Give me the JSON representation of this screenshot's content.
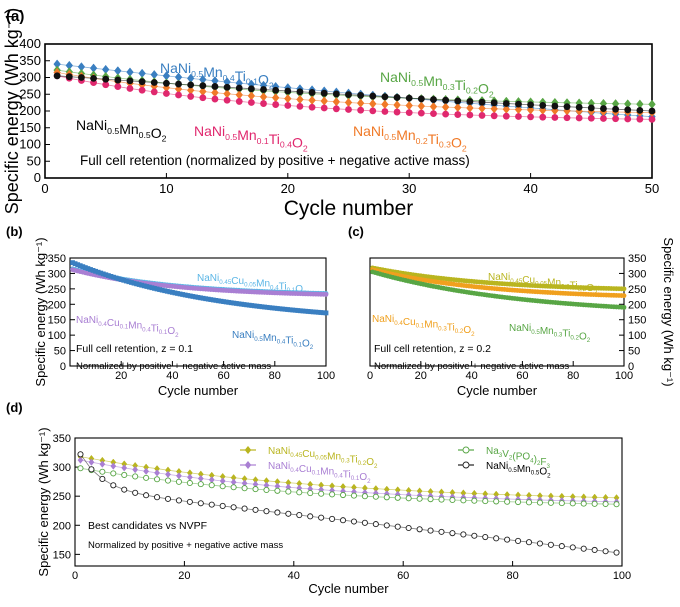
{
  "chart_data": [
    {
      "id": "a",
      "panel_label": "(a)",
      "type": "scatter",
      "xlabel": "Cycle number",
      "ylabel": "Specific energy (Wh kg⁻¹)",
      "xlim": [
        0,
        50
      ],
      "ylim": [
        0,
        400
      ],
      "xticks": [
        0,
        10,
        20,
        30,
        40,
        50
      ],
      "yticks": [
        0,
        50,
        100,
        150,
        200,
        250,
        300,
        350,
        400
      ],
      "annotation": "Full cell retention (normalized by positive + negative active mass)",
      "series": [
        {
          "name": "NaNi0.5Mn0.4Ti0.1O2",
          "label_parts": [
            [
              "NaNi",
              ""
            ],
            [
              "0.5",
              "sub"
            ],
            [
              "Mn",
              ""
            ],
            [
              "0.4",
              "sub"
            ],
            [
              "Ti",
              ""
            ],
            [
              "0.1",
              "sub"
            ],
            [
              "O",
              ""
            ],
            [
              "2",
              "sub"
            ]
          ],
          "color": "#3a7fc1",
          "marker": "diamond",
          "start": 340,
          "end": 183,
          "k": 0.28
        },
        {
          "name": "NaNi0.5Mn0.3Ti0.2O2",
          "label_parts": [
            [
              "NaNi",
              ""
            ],
            [
              "0.5",
              "sub"
            ],
            [
              "Mn",
              ""
            ],
            [
              "0.3",
              "sub"
            ],
            [
              "Ti",
              ""
            ],
            [
              "0.2",
              "sub"
            ],
            [
              "O",
              ""
            ],
            [
              "2",
              "sub"
            ]
          ],
          "color": "#58a645",
          "marker": "diamond",
          "start": 322,
          "end": 220,
          "k": 0.75
        },
        {
          "name": "NaNi0.5Mn0.2Ti0.3O2",
          "label_parts": [
            [
              "NaNi",
              ""
            ],
            [
              "0.5",
              "sub"
            ],
            [
              "Mn",
              ""
            ],
            [
              "0.2",
              "sub"
            ],
            [
              "Ti",
              ""
            ],
            [
              "0.3",
              "sub"
            ],
            [
              "O",
              ""
            ],
            [
              "2",
              "sub"
            ]
          ],
          "color": "#f07a28",
          "marker": "diamond",
          "start": 315,
          "end": 195,
          "k": 0.75
        },
        {
          "name": "NaNi0.5Mn0.1Ti0.4O2",
          "label_parts": [
            [
              "NaNi",
              ""
            ],
            [
              "0.5",
              "sub"
            ],
            [
              "Mn",
              ""
            ],
            [
              "0.1",
              "sub"
            ],
            [
              "Ti",
              ""
            ],
            [
              "0.4",
              "sub"
            ],
            [
              "O",
              ""
            ],
            [
              "2",
              "sub"
            ]
          ],
          "color": "#e0286e",
          "marker": "circle",
          "start": 305,
          "end": 175,
          "k": 0.85
        },
        {
          "name": "NaNi0.5Mn0.5O2",
          "label_parts": [
            [
              "NaNi",
              ""
            ],
            [
              "0.5",
              "sub"
            ],
            [
              "Mn",
              ""
            ],
            [
              "0.5",
              "sub"
            ],
            [
              "O",
              ""
            ],
            [
              "2",
              "sub"
            ]
          ],
          "color": "#111111",
          "marker": "circle",
          "start": 305,
          "end": 200,
          "k": 0.2
        }
      ]
    },
    {
      "id": "b",
      "panel_label": "(b)",
      "type": "scatter",
      "xlabel": "Cycle number",
      "ylabel": "Specific energy (Wh kg⁻¹)",
      "xlim": [
        0,
        100
      ],
      "ylim": [
        0,
        350
      ],
      "xticks": [
        20,
        40,
        60,
        80,
        100
      ],
      "yticks": [
        0,
        50,
        100,
        150,
        200,
        250,
        300,
        350
      ],
      "annotation": "Full cell retention, z = 0.1",
      "annotation2": "Normalized by positive + negative active mass",
      "series": [
        {
          "name": "NaNi0.45Cu0.05Mn0.4Ti0.1O2",
          "label_parts": [
            [
              "NaNi",
              ""
            ],
            [
              "0.45",
              "sub"
            ],
            [
              "Cu",
              ""
            ],
            [
              "0.05",
              "sub"
            ],
            [
              "Mn",
              ""
            ],
            [
              "0.4",
              "sub"
            ],
            [
              "Ti",
              ""
            ],
            [
              "0.1",
              "sub"
            ],
            [
              "O",
              ""
            ],
            [
              "2",
              "sub"
            ]
          ],
          "color": "#5bb6e6",
          "marker": "circle",
          "start": 315,
          "end": 235,
          "k": 0.8
        },
        {
          "name": "NaNi0.4Cu0.1Mn0.4Ti0.1O2",
          "label_parts": [
            [
              "NaNi",
              ""
            ],
            [
              "0.4",
              "sub"
            ],
            [
              "Cu",
              ""
            ],
            [
              "0.1",
              "sub"
            ],
            [
              "Mn",
              ""
            ],
            [
              "0.4",
              "sub"
            ],
            [
              "Ti",
              ""
            ],
            [
              "0.1",
              "sub"
            ],
            [
              "O",
              ""
            ],
            [
              "2",
              "sub"
            ]
          ],
          "color": "#a97fd3",
          "marker": "circle",
          "start": 312,
          "end": 232,
          "k": 0.8
        },
        {
          "name": "NaNi0.5Mn0.4Ti0.1O2",
          "label_parts": [
            [
              "NaNi",
              ""
            ],
            [
              "0.5",
              "sub"
            ],
            [
              "Mn",
              ""
            ],
            [
              "0.4",
              "sub"
            ],
            [
              "Ti",
              ""
            ],
            [
              "0.1",
              "sub"
            ],
            [
              "O",
              ""
            ],
            [
              "2",
              "sub"
            ]
          ],
          "color": "#3a7fc1",
          "marker": "square",
          "start": 335,
          "end": 172,
          "k": 0.55
        }
      ]
    },
    {
      "id": "c",
      "panel_label": "(c)",
      "type": "scatter",
      "xlabel": "Cycle number",
      "ylabel": "Specific energy (Wh kg⁻¹)",
      "xlim": [
        0,
        100
      ],
      "ylim": [
        0,
        350
      ],
      "xticks": [
        0,
        20,
        40,
        60,
        80,
        100
      ],
      "yticks": [
        0,
        50,
        100,
        150,
        200,
        250,
        300,
        350
      ],
      "annotation": "Full cell retention, z = 0.2",
      "annotation2": "Normalized by positive + negative active mass",
      "series": [
        {
          "name": "NaNi0.45Cu0.05Mn0.3Ti0.2O2",
          "label_parts": [
            [
              "NaNi",
              ""
            ],
            [
              "0.45",
              "sub"
            ],
            [
              "Cu",
              ""
            ],
            [
              "0.05",
              "sub"
            ],
            [
              "Mn",
              ""
            ],
            [
              "0.3",
              "sub"
            ],
            [
              "Ti",
              ""
            ],
            [
              "0.2",
              "sub"
            ],
            [
              "O",
              ""
            ],
            [
              "2",
              "sub"
            ]
          ],
          "color": "#b9b51f",
          "marker": "circle",
          "start": 318,
          "end": 250,
          "k": 0.7
        },
        {
          "name": "NaNi0.4Cu0.1Mn0.3Ti0.2O2",
          "label_parts": [
            [
              "NaNi",
              ""
            ],
            [
              "0.4",
              "sub"
            ],
            [
              "Cu",
              ""
            ],
            [
              "0.1",
              "sub"
            ],
            [
              "Mn",
              ""
            ],
            [
              "0.3",
              "sub"
            ],
            [
              "Ti",
              ""
            ],
            [
              "0.2",
              "sub"
            ],
            [
              "O",
              ""
            ],
            [
              "2",
              "sub"
            ]
          ],
          "color": "#f0a01e",
          "marker": "circle",
          "start": 312,
          "end": 228,
          "k": 0.7
        },
        {
          "name": "NaNi0.5Mn0.3Ti0.2O2",
          "label_parts": [
            [
              "NaNi",
              ""
            ],
            [
              "0.5",
              "sub"
            ],
            [
              "Mn",
              ""
            ],
            [
              "0.3",
              "sub"
            ],
            [
              "Ti",
              ""
            ],
            [
              "0.2",
              "sub"
            ],
            [
              "O",
              ""
            ],
            [
              "2",
              "sub"
            ]
          ],
          "color": "#58a645",
          "marker": "circle",
          "start": 305,
          "end": 190,
          "k": 0.55
        }
      ]
    },
    {
      "id": "d",
      "panel_label": "(d)",
      "type": "scatter",
      "xlabel": "Cycle number",
      "ylabel": "Specific energy (Wh kg⁻¹)",
      "xlim": [
        0,
        100
      ],
      "ylim": [
        130,
        350
      ],
      "xticks": [
        0,
        20,
        40,
        60,
        80,
        100
      ],
      "yticks": [
        150,
        200,
        250,
        300,
        350
      ],
      "annotation": "Best candidates vs NVPF",
      "annotation2": "Normalized by positive + negative active mass",
      "series": [
        {
          "name": "NaNi0.45Cu0.05Mn0.3Ti0.2O2",
          "label_parts": [
            [
              "NaNi",
              ""
            ],
            [
              "0.45",
              "sub"
            ],
            [
              "Cu",
              ""
            ],
            [
              "0.05",
              "sub"
            ],
            [
              "Mn",
              ""
            ],
            [
              "0.3",
              "sub"
            ],
            [
              "Ti",
              ""
            ],
            [
              "0.2",
              "sub"
            ],
            [
              "O",
              ""
            ],
            [
              "2",
              "sub"
            ]
          ],
          "color": "#b9b51f",
          "marker": "diamond",
          "start": 318,
          "end": 247,
          "k": 0.7
        },
        {
          "name": "NaNi0.4Cu0.1Mn0.4Ti0.1O2",
          "label_parts": [
            [
              "NaNi",
              ""
            ],
            [
              "0.4",
              "sub"
            ],
            [
              "Cu",
              ""
            ],
            [
              "0.1",
              "sub"
            ],
            [
              "Mn",
              ""
            ],
            [
              "0.4",
              "sub"
            ],
            [
              "Ti",
              ""
            ],
            [
              "0.1",
              "sub"
            ],
            [
              "O",
              ""
            ],
            [
              "2",
              "sub"
            ]
          ],
          "color": "#a97fd3",
          "marker": "diamond",
          "start": 312,
          "end": 240,
          "k": 0.75
        },
        {
          "name": "Na3V2(PO4)2F3",
          "label_parts": [
            [
              "Na",
              ""
            ],
            [
              "3",
              "sub"
            ],
            [
              "V",
              ""
            ],
            [
              "2",
              "sub"
            ],
            [
              "(PO",
              ""
            ],
            [
              "4",
              "sub"
            ],
            [
              ")",
              ""
            ],
            [
              "2",
              "sub"
            ],
            [
              "F",
              ""
            ],
            [
              "3",
              "sub"
            ]
          ],
          "color": "#58a645",
          "marker": "hollow-circle",
          "start": 298,
          "end": 236,
          "k": 0.75
        },
        {
          "name": "NaNi0.5Mn0.5O2",
          "label_parts": [
            [
              "NaNi",
              ""
            ],
            [
              "0.5",
              "sub"
            ],
            [
              "Mn",
              ""
            ],
            [
              "0.5",
              "sub"
            ],
            [
              "O",
              ""
            ],
            [
              "2",
              "sub"
            ]
          ],
          "color": "#222222",
          "marker": "hollow-circle",
          "start": 322,
          "end": 152,
          "k": 0.05,
          "drop": 60,
          "dropRate": 0.25
        }
      ]
    }
  ]
}
